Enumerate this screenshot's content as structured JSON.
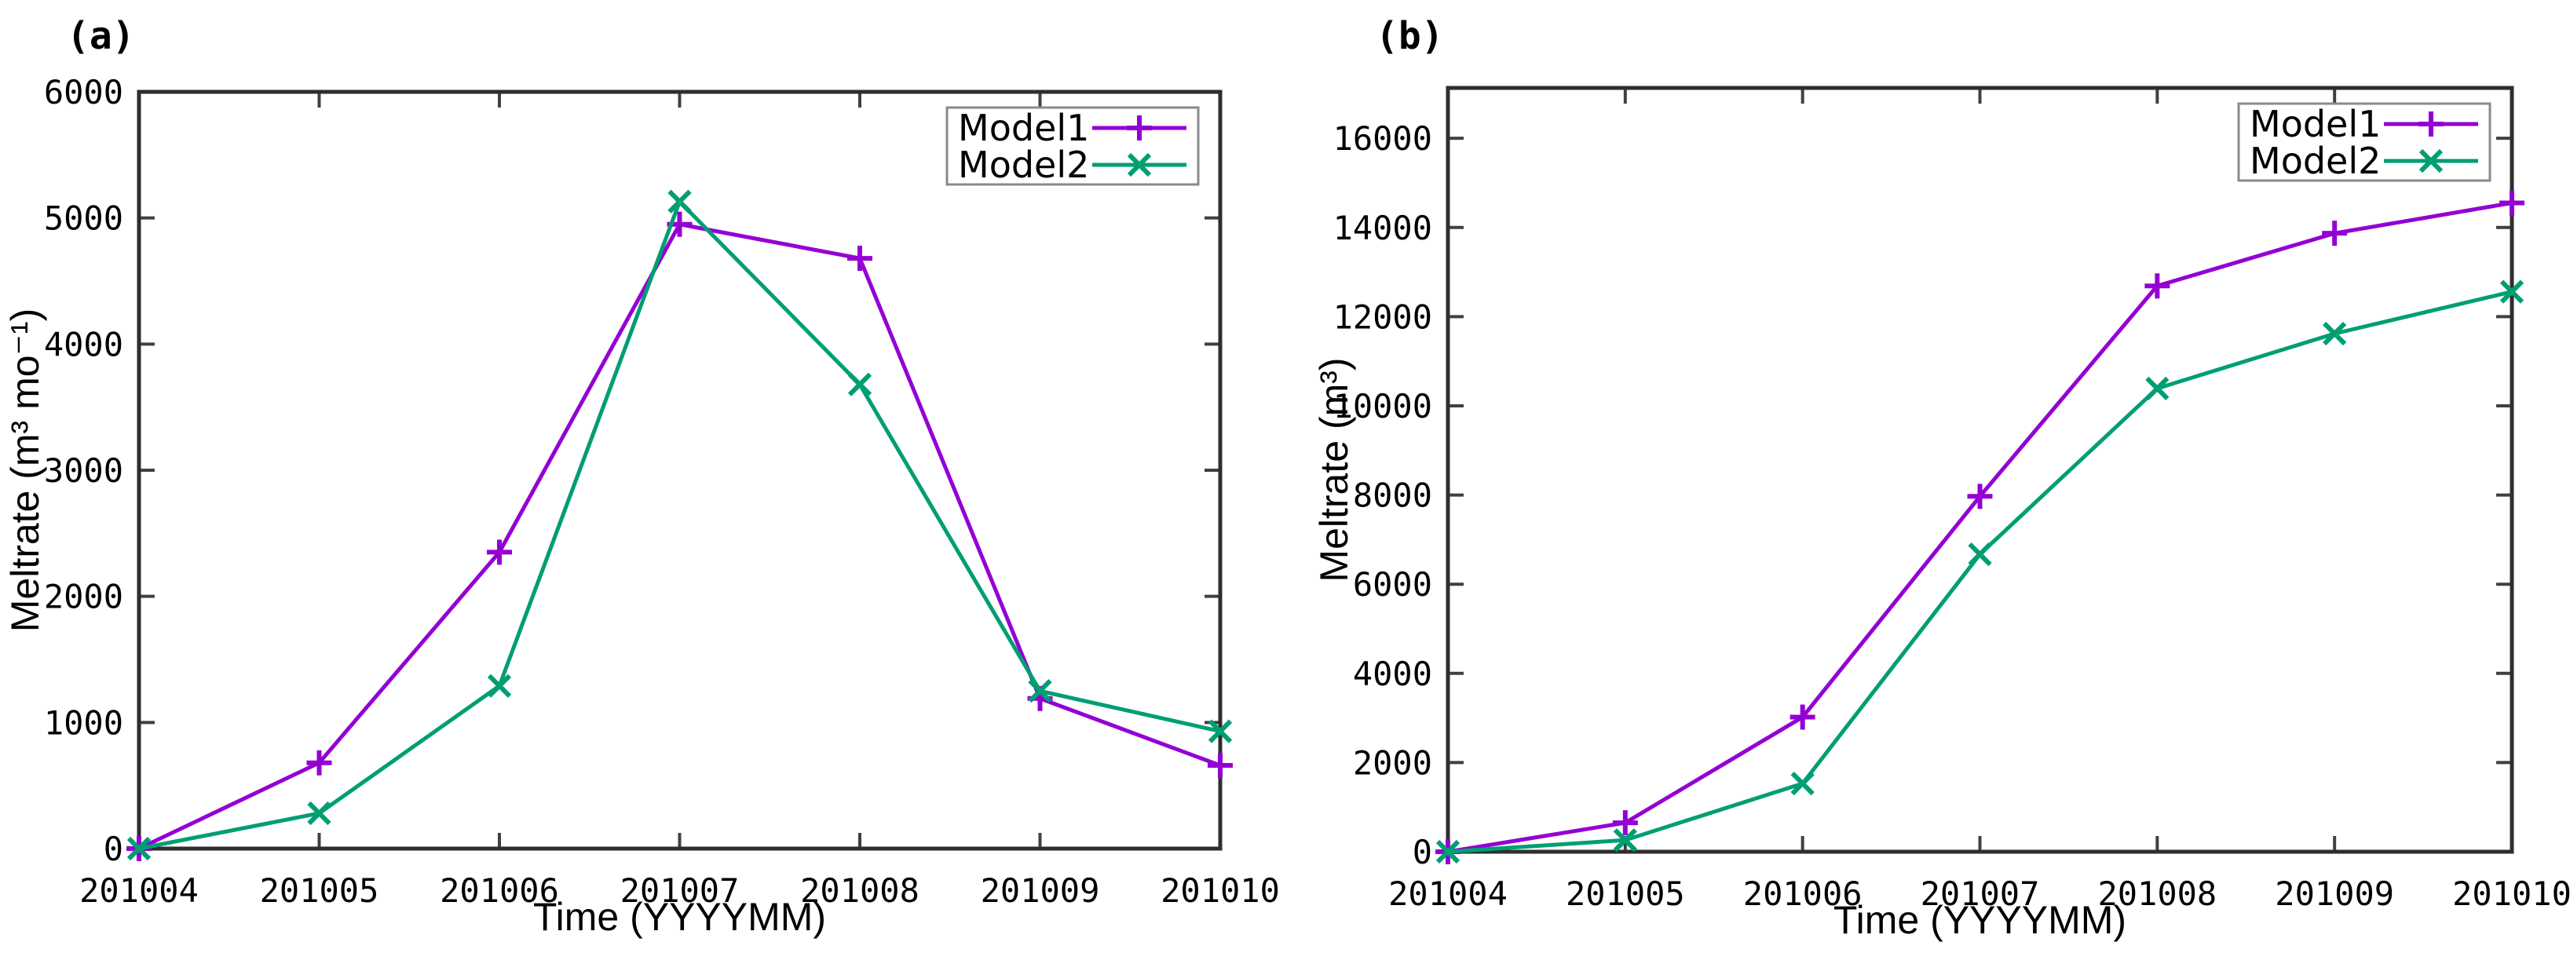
{
  "figure": {
    "background": "#ffffff",
    "axis_color": "#2e2e2e",
    "tick_color": "#404040",
    "text_color": "#000000",
    "legend_border_color": "#8a8a8a",
    "legend_fill": "#ffffff"
  },
  "chart_data": [
    {
      "id": "a",
      "type": "line",
      "panel_label": "(a)",
      "xlabel": "Time (YYYYMM)",
      "ylabel": "Meltrate (m³ mo⁻¹)",
      "x_categories": [
        "201004",
        "201005",
        "201006",
        "201007",
        "201008",
        "201009",
        "201010"
      ],
      "ylim": [
        0,
        6000
      ],
      "yticks": [
        0,
        1000,
        2000,
        3000,
        4000,
        5000,
        6000
      ],
      "grid": false,
      "legend_position": "top-right",
      "series": [
        {
          "name": "Model1",
          "color": "#9400d3",
          "marker": "plus",
          "values": [
            0,
            680,
            2350,
            4950,
            4680,
            1190,
            660
          ]
        },
        {
          "name": "Model2",
          "color": "#009e73",
          "marker": "cross",
          "values": [
            0,
            280,
            1290,
            5130,
            3680,
            1250,
            930
          ]
        }
      ]
    },
    {
      "id": "b",
      "type": "line",
      "panel_label": "(b)",
      "xlabel": "Time (YYYYMM)",
      "ylabel": "Meltrate (m³)",
      "x_categories": [
        "201004",
        "201005",
        "201006",
        "201007",
        "201008",
        "201009",
        "201010"
      ],
      "ylim": [
        0,
        17130
      ],
      "yticks": [
        0,
        2000,
        4000,
        6000,
        8000,
        10000,
        12000,
        14000,
        16000
      ],
      "grid": false,
      "legend_position": "top-right",
      "series": [
        {
          "name": "Model1",
          "color": "#9400d3",
          "marker": "plus",
          "values": [
            0,
            650,
            3020,
            7970,
            12690,
            13870,
            14550
          ]
        },
        {
          "name": "Model2",
          "color": "#009e73",
          "marker": "cross",
          "values": [
            0,
            260,
            1530,
            6670,
            10390,
            11620,
            12560
          ]
        }
      ]
    }
  ]
}
